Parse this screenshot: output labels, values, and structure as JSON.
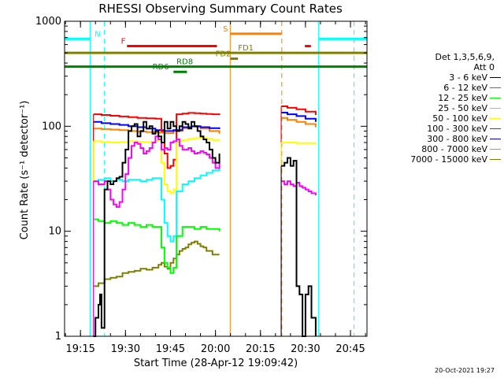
{
  "chart_data": {
    "type": "line",
    "title": "RHESSI Observing Summary Count Rates",
    "xlabel": "Start Time (28-Apr-12 19:09:42)",
    "ylabel": "Count Rate (s⁻¹ detector⁻¹)",
    "yscale": "log",
    "ylim": [
      1,
      1000
    ],
    "y_ticks": [
      1,
      10,
      100,
      1000
    ],
    "y_tick_labels": [
      "1",
      "10",
      "100",
      "1000"
    ],
    "xlim_minutes": [
      1149.7,
      1250.5
    ],
    "x_ticks_minutes": [
      1155,
      1170,
      1185,
      1200,
      1215,
      1230,
      1245
    ],
    "x_tick_labels": [
      "19:15",
      "19:30",
      "19:45",
      "20:00",
      "20:15",
      "20:30",
      "20:45"
    ],
    "grid": false,
    "legend_placement": "right",
    "legend_title": [
      "Det 1,3,5,6,9,",
      "Att 0"
    ],
    "timestamp": "20-Oct-2021 19:27",
    "gaps": [
      [
        1158.3,
        1159.2
      ],
      [
        1201.5,
        1221.8
      ],
      [
        1233.5,
        1250.5
      ]
    ],
    "series": [
      {
        "name": "3 - 6 keV",
        "color": "#000000",
        "x": [
          1159.3,
          1160,
          1161,
          1161.5,
          1162,
          1163,
          1164,
          1165,
          1166,
          1167,
          1168,
          1169,
          1170,
          1171,
          1172,
          1173,
          1174,
          1175,
          1176,
          1177,
          1178,
          1179,
          1180,
          1181,
          1182,
          1183,
          1184,
          1185,
          1186,
          1187,
          1188,
          1189,
          1190,
          1191,
          1192,
          1193,
          1194,
          1195,
          1196,
          1197,
          1198,
          1199,
          1200,
          1201.3,
          1221.9,
          1223,
          1224,
          1225,
          1226,
          1227,
          1228,
          1229,
          1230,
          1231,
          1232,
          1233.4
        ],
        "y": [
          1,
          1.5,
          2,
          2.5,
          1.2,
          25,
          30,
          28,
          30,
          32,
          33,
          45,
          60,
          90,
          100,
          105,
          80,
          90,
          110,
          95,
          100,
          85,
          90,
          80,
          70,
          110,
          95,
          110,
          100,
          90,
          100,
          110,
          105,
          95,
          110,
          100,
          90,
          80,
          75,
          70,
          60,
          50,
          45,
          55,
          42,
          45,
          50,
          42,
          47,
          3,
          2.5,
          1,
          2.5,
          3,
          1.5,
          1
        ]
      },
      {
        "name": "6 - 12 keV",
        "color": "#ff00ff",
        "x": [
          1159.3,
          1161,
          1163,
          1164,
          1165,
          1166,
          1167,
          1168,
          1169,
          1170,
          1171,
          1172,
          1173,
          1174,
          1175,
          1176,
          1177,
          1178,
          1179,
          1180,
          1181,
          1182,
          1183,
          1184,
          1185,
          1186,
          1187,
          1188,
          1189,
          1190,
          1191,
          1192,
          1193,
          1194,
          1195,
          1196,
          1197,
          1198,
          1199,
          1200,
          1201.3,
          1221.9,
          1223,
          1224,
          1225,
          1226,
          1227,
          1228,
          1229,
          1230,
          1231,
          1232,
          1233.4
        ],
        "y": [
          30,
          28,
          30,
          25,
          20,
          18,
          17,
          19,
          25,
          35,
          50,
          65,
          70,
          68,
          62,
          55,
          58,
          62,
          70,
          80,
          75,
          60,
          62,
          60,
          70,
          72,
          75,
          65,
          60,
          60,
          62,
          58,
          55,
          56,
          58,
          56,
          54,
          50,
          45,
          40,
          45,
          30,
          28,
          30,
          28,
          27,
          29,
          27,
          26,
          25,
          24,
          23,
          22
        ]
      },
      {
        "name": "12 - 25 keV",
        "color": "#00ff00",
        "x": [
          1159.3,
          1161,
          1163,
          1165,
          1167,
          1169,
          1171,
          1173,
          1175,
          1177,
          1179,
          1181,
          1182,
          1183,
          1184,
          1185,
          1186,
          1187,
          1189,
          1191,
          1193,
          1195,
          1197,
          1199,
          1201.3
        ],
        "y": [
          13,
          12.5,
          12,
          12.5,
          12,
          11.5,
          12,
          11.5,
          11,
          11.5,
          11,
          11,
          7,
          5,
          4.5,
          4,
          4.5,
          9,
          11,
          11,
          10.5,
          11,
          10.5,
          10.5,
          10
        ]
      },
      {
        "name": "25 - 50 keV",
        "color": "#00ffff",
        "x": [
          1159.3,
          1161,
          1163,
          1165,
          1167,
          1169,
          1171,
          1173,
          1175,
          1177,
          1179,
          1181,
          1182,
          1183,
          1184,
          1185,
          1186,
          1187,
          1189,
          1191,
          1193,
          1195,
          1197,
          1199,
          1201.3
        ],
        "y": [
          30,
          31,
          32,
          30,
          31,
          30,
          31,
          31,
          30,
          31,
          32,
          32,
          20,
          12,
          9,
          8,
          9,
          24,
          28,
          30,
          32,
          34,
          36,
          38,
          40
        ]
      },
      {
        "name": "50 - 100 keV",
        "color": "#ffff00",
        "x": [
          1159.3,
          1162,
          1165,
          1168,
          1171,
          1174,
          1177,
          1180,
          1181,
          1182,
          1183,
          1184,
          1185,
          1186,
          1187,
          1189,
          1191,
          1193,
          1195,
          1197,
          1199,
          1201.3,
          1221.9,
          1224,
          1227,
          1230,
          1233.4
        ],
        "y": [
          72,
          71,
          70,
          71,
          72,
          71,
          71,
          73,
          74,
          45,
          28,
          24,
          23,
          25,
          72,
          74,
          76,
          77,
          78,
          76,
          74,
          72,
          70,
          70,
          69,
          69,
          68
        ]
      },
      {
        "name": "100 - 300 keV",
        "color": "#ff0000",
        "x": [
          1159.3,
          1162,
          1165,
          1168,
          1171,
          1174,
          1177,
          1180,
          1181,
          1182,
          1183,
          1184,
          1185,
          1186,
          1187,
          1189,
          1191,
          1193,
          1195,
          1197,
          1199,
          1201.3,
          1221.9,
          1224,
          1227,
          1230,
          1233.4
        ],
        "y": [
          130,
          128,
          126,
          124,
          122,
          120,
          119,
          118,
          118,
          90,
          55,
          40,
          42,
          48,
          130,
          132,
          134,
          133,
          132,
          131,
          130,
          128,
          155,
          150,
          145,
          138,
          128
        ]
      },
      {
        "name": "300 - 800 keV",
        "color": "#0000ff",
        "x": [
          1159.3,
          1162,
          1165,
          1168,
          1171,
          1174,
          1177,
          1180,
          1183,
          1186,
          1189,
          1192,
          1195,
          1198,
          1201.3,
          1221.9,
          1224,
          1227,
          1230,
          1233.4
        ],
        "y": [
          110,
          107,
          105,
          103,
          100,
          98,
          95,
          92,
          90,
          92,
          98,
          100,
          98,
          96,
          94,
          135,
          130,
          125,
          118,
          110
        ]
      },
      {
        "name": "800 - 7000 keV",
        "color": "#ff8000",
        "x": [
          1159.3,
          1162,
          1165,
          1168,
          1171,
          1174,
          1177,
          1180,
          1183,
          1186,
          1189,
          1192,
          1195,
          1198,
          1201.3,
          1221.9,
          1224,
          1227,
          1230,
          1233.4
        ],
        "y": [
          95,
          94,
          93,
          92,
          90,
          89,
          88,
          87,
          86,
          90,
          96,
          99,
          95,
          90,
          85,
          120,
          115,
          110,
          105,
          98
        ]
      },
      {
        "name": "7000 - 15000 keV",
        "color": "#808000",
        "x": [
          1159.3,
          1161,
          1163,
          1165,
          1167,
          1169,
          1171,
          1173,
          1175,
          1177,
          1179,
          1181,
          1182,
          1183,
          1184,
          1185,
          1186,
          1187,
          1188,
          1189,
          1190,
          1191,
          1192,
          1193,
          1194,
          1195,
          1196,
          1197,
          1199,
          1201.3
        ],
        "y": [
          3,
          3.2,
          3.5,
          3.6,
          3.7,
          4,
          4.1,
          4.2,
          4.4,
          4.3,
          4.5,
          4.8,
          5,
          4.6,
          4.4,
          5,
          5.5,
          6,
          6.5,
          6.8,
          7,
          7.5,
          7.8,
          8,
          7.6,
          7.2,
          7,
          6.5,
          6,
          6
        ]
      }
    ],
    "markers": [
      {
        "label": "N",
        "color": "#00ffff",
        "y": 680,
        "segments": [
          [
            1149.7,
            1158.1
          ],
          [
            1234.4,
            1250.5
          ]
        ],
        "label_x": 1159.7
      },
      {
        "label": "F",
        "color": "#ff0000",
        "y": 580,
        "segments": [
          [
            1170.5,
            1200.5
          ],
          [
            1229.8,
            1231.8
          ]
        ],
        "label_x": 1168.5
      },
      {
        "label": "S",
        "color": "#ff8000",
        "y": 760,
        "segments": [
          [
            1205,
            1222
          ]
        ],
        "label_x": 1202.5
      },
      {
        "label": "FD1",
        "color": "#808000",
        "y": 500,
        "segments": [
          [
            1149.7,
            1250.5
          ]
        ],
        "label_x": 1207.5
      },
      {
        "label": "FD2",
        "color": "#808000",
        "y": 440,
        "segments": [
          [
            1205,
            1207.5
          ]
        ],
        "label_x": 1200
      },
      {
        "label": "RD6",
        "color": "#008000",
        "y": 330,
        "segments": [
          [
            1186,
            1190.5
          ]
        ],
        "label_x": 1179
      },
      {
        "label": "RD8",
        "color": "#008000",
        "y": 370,
        "segments": [
          [
            1149.7,
            1250.5
          ]
        ],
        "label_x": 1187
      }
    ],
    "vertical_lines": [
      {
        "x": 1158.2,
        "color": "#00ffff",
        "style": "solid"
      },
      {
        "x": 1163.0,
        "color": "#00ffff",
        "style": "dashed"
      },
      {
        "x": 1204.9,
        "color": "#ff8000",
        "style": "solid"
      },
      {
        "x": 1222.1,
        "color": "#ff8000",
        "style": "dashed"
      },
      {
        "x": 1234.4,
        "color": "#00ffff",
        "style": "solid"
      },
      {
        "x": 1246.2,
        "color": "#00ffff",
        "style": "dashed"
      }
    ]
  }
}
